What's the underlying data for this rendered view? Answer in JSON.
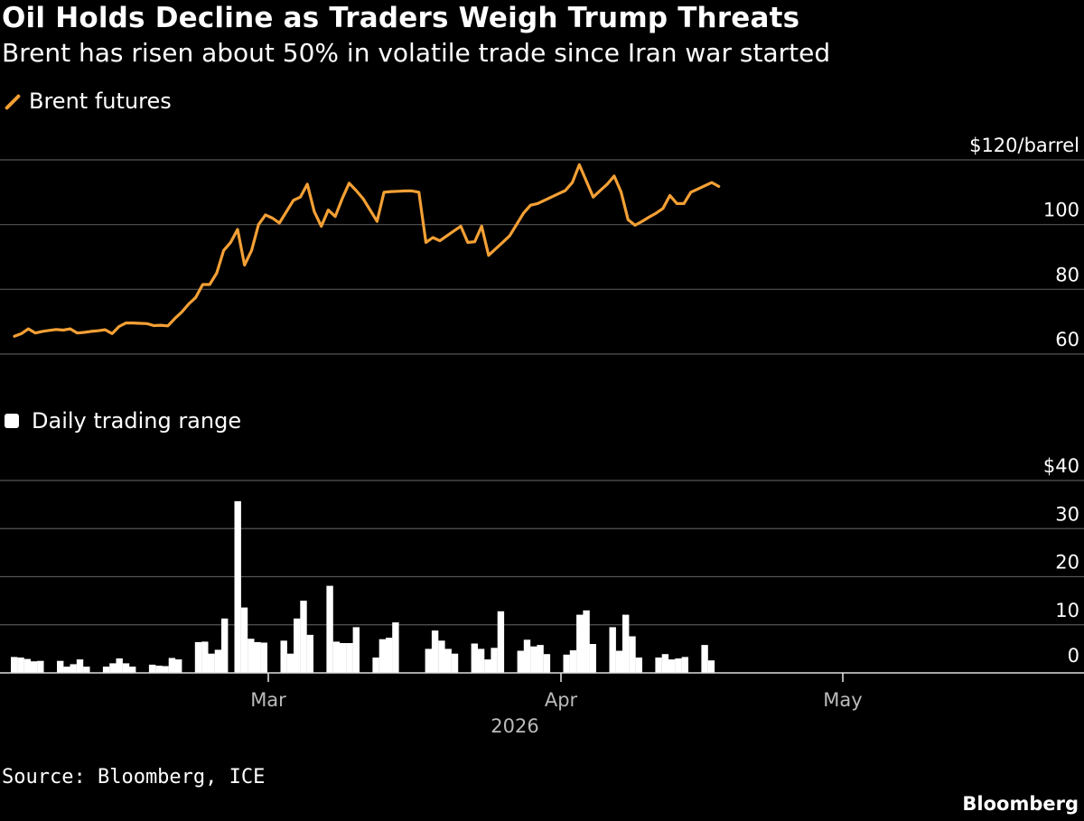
{
  "title": "Oil Holds Decline as Traders Weigh Trump Threats",
  "subtitle": "Brent has risen about 50% in volatile trade since Iran war started",
  "source": "Source: Bloomberg, ICE",
  "brand": "Bloomberg",
  "colors": {
    "background": "#000000",
    "line": "#f4a035",
    "bars": "#ffffff",
    "grid": "#555555",
    "text": "#ffffff",
    "muted": "#bbbbbb"
  },
  "chart_data": [
    {
      "type": "line",
      "legend": "Brent futures",
      "x_tick_labels": [
        "Mar",
        "Apr",
        "May"
      ],
      "x_year_label": "2026",
      "y_tick_labels": [
        "$120/barrel",
        "100",
        "80",
        "60"
      ],
      "y_ticks": [
        120,
        100,
        80,
        60
      ],
      "ylim": [
        60,
        120
      ],
      "grid": true,
      "series": [
        {
          "values": [
            65.5,
            66.3,
            67.8,
            66.5,
            67.0,
            67.3,
            67.6,
            67.4,
            67.8,
            66.5,
            66.7,
            67.0,
            67.2,
            67.5,
            66.3,
            68.5,
            69.6,
            69.6,
            69.5,
            69.4,
            68.8,
            68.9,
            68.7,
            71.0,
            73.0,
            75.5,
            77.5,
            81.5,
            81.5,
            85.0,
            92.0,
            94.5,
            98.5,
            87.5,
            92.0,
            100.0,
            103.0,
            102.0,
            100.5,
            104.0,
            107.5,
            108.5,
            112.5,
            104.0,
            99.5,
            104.5,
            102.5,
            108.0,
            112.8,
            110.5,
            108.0,
            104.5,
            101.0,
            110.0,
            110.2,
            110.3,
            110.4,
            110.4,
            110.0,
            94.5,
            96.0,
            95.0,
            96.5,
            98.0,
            99.5,
            94.5,
            94.7,
            99.5,
            90.5,
            92.5,
            94.5,
            96.5,
            100.0,
            103.5,
            106.0,
            106.5,
            107.5,
            108.5,
            109.5,
            110.5,
            113.0,
            118.5,
            113.5,
            108.5,
            110.5,
            112.5,
            115.0,
            110.0,
            101.5,
            99.8,
            101.0,
            102.3,
            103.5,
            105.0,
            109.0,
            106.5,
            106.5,
            110.0,
            111.0,
            112.0,
            113.0,
            111.8
          ]
        }
      ]
    },
    {
      "type": "bar",
      "legend": "Daily trading range",
      "y_tick_labels": [
        "$40",
        "30",
        "20",
        "10",
        "0"
      ],
      "y_ticks": [
        40,
        30,
        20,
        10,
        0
      ],
      "ylim": [
        0,
        40
      ],
      "grid": true,
      "series": [
        {
          "values": [
            3.3,
            3.2,
            2.9,
            2.4,
            2.5,
            null,
            null,
            2.5,
            1.3,
            1.8,
            2.8,
            1.3,
            null,
            null,
            1.3,
            2.0,
            3.0,
            2.0,
            1.3,
            null,
            null,
            1.7,
            1.5,
            1.4,
            3.1,
            2.8,
            null,
            null,
            6.4,
            6.5,
            4.0,
            4.8,
            11.3,
            null,
            35.7,
            13.6,
            7.1,
            6.4,
            6.3,
            null,
            null,
            6.7,
            4.0,
            11.3,
            15.0,
            7.9,
            null,
            null,
            18.1,
            6.5,
            6.2,
            6.2,
            9.5,
            null,
            null,
            3.2,
            7.0,
            7.3,
            10.5,
            null,
            null,
            null,
            null,
            5.0,
            8.8,
            6.7,
            5.0,
            4.0,
            null,
            null,
            6.1,
            5.0,
            2.8,
            5.2,
            12.8,
            null,
            null,
            4.6,
            6.9,
            5.5,
            5.8,
            3.9,
            null,
            null,
            3.8,
            4.7,
            12.1,
            13.0,
            6.0,
            null,
            null,
            9.5,
            4.6,
            12.1,
            7.6,
            3.2,
            null,
            null,
            3.2,
            3.9,
            2.8,
            3.0,
            3.3,
            null,
            null,
            5.8,
            2.6
          ]
        }
      ]
    }
  ]
}
